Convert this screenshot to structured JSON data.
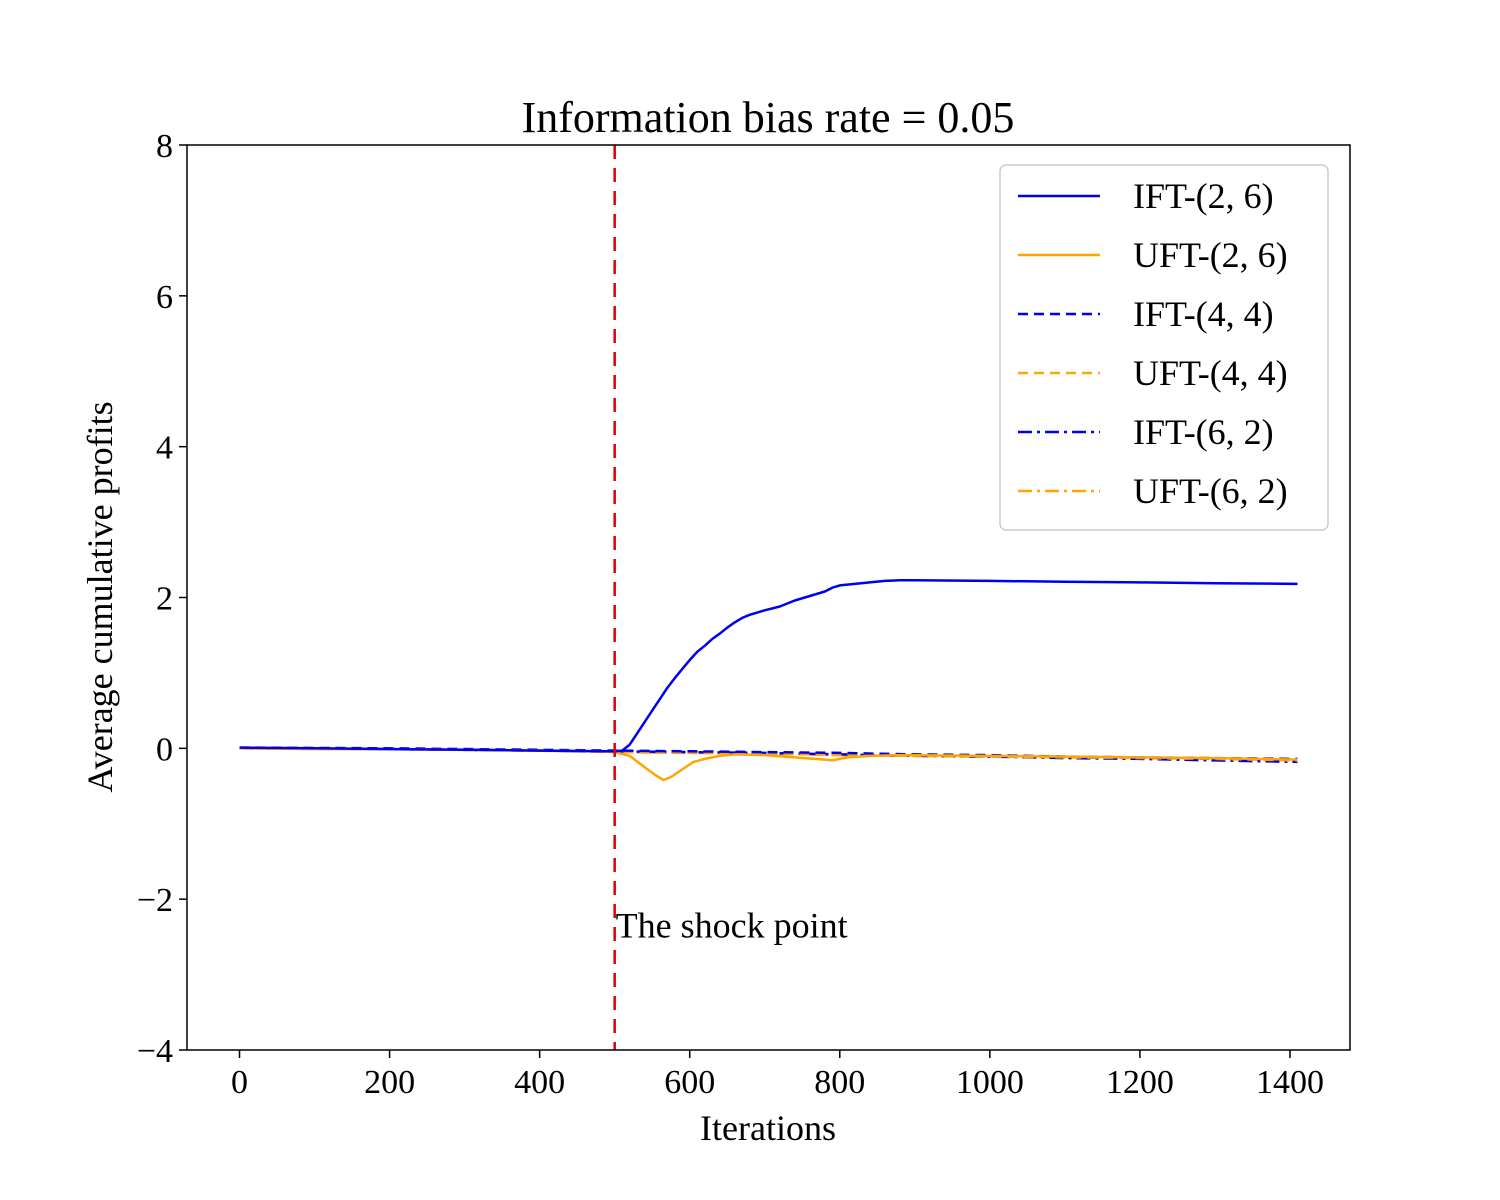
{
  "chart_data": {
    "type": "line",
    "title": "Information bias rate = 0.05",
    "xlabel": "Iterations",
    "ylabel": "Average cumulative profits",
    "xlim": [
      -70,
      1480
    ],
    "ylim": [
      -4,
      8
    ],
    "xticks": [
      0,
      200,
      400,
      600,
      800,
      1000,
      1200,
      1400
    ],
    "yticks": [
      -4,
      -2,
      0,
      2,
      4,
      6,
      8
    ],
    "xtick_labels": [
      "0",
      "200",
      "400",
      "600",
      "800",
      "1000",
      "1200",
      "1400"
    ],
    "ytick_labels": [
      "−4",
      "−2",
      "0",
      "2",
      "4",
      "6",
      "8"
    ],
    "grid": false,
    "legend_position": "top-right",
    "shock_line": {
      "x": 500,
      "color": "#e00000",
      "label": "The shock point",
      "label_y": -2.35
    },
    "series": [
      {
        "name": "IFT-(2, 6)",
        "color": "#0000ee",
        "dash": "solid",
        "points": [
          [
            0,
            0.01
          ],
          [
            100,
            0.0
          ],
          [
            200,
            -0.01
          ],
          [
            300,
            -0.02
          ],
          [
            400,
            -0.03
          ],
          [
            480,
            -0.04
          ],
          [
            500,
            -0.04
          ],
          [
            510,
            -0.03
          ],
          [
            520,
            0.05
          ],
          [
            530,
            0.2
          ],
          [
            540,
            0.35
          ],
          [
            550,
            0.5
          ],
          [
            560,
            0.65
          ],
          [
            570,
            0.8
          ],
          [
            580,
            0.93
          ],
          [
            590,
            1.05
          ],
          [
            600,
            1.17
          ],
          [
            610,
            1.28
          ],
          [
            620,
            1.36
          ],
          [
            630,
            1.45
          ],
          [
            640,
            1.52
          ],
          [
            650,
            1.6
          ],
          [
            660,
            1.67
          ],
          [
            670,
            1.73
          ],
          [
            680,
            1.77
          ],
          [
            690,
            1.8
          ],
          [
            700,
            1.83
          ],
          [
            720,
            1.88
          ],
          [
            740,
            1.96
          ],
          [
            760,
            2.02
          ],
          [
            780,
            2.08
          ],
          [
            790,
            2.13
          ],
          [
            800,
            2.16
          ],
          [
            820,
            2.18
          ],
          [
            840,
            2.2
          ],
          [
            860,
            2.22
          ],
          [
            880,
            2.23
          ],
          [
            900,
            2.23
          ],
          [
            1000,
            2.22
          ],
          [
            1100,
            2.21
          ],
          [
            1200,
            2.2
          ],
          [
            1300,
            2.19
          ],
          [
            1410,
            2.18
          ]
        ]
      },
      {
        "name": "UFT-(2, 6)",
        "color": "#ffa500",
        "dash": "solid",
        "points": [
          [
            0,
            0.0
          ],
          [
            100,
            -0.01
          ],
          [
            200,
            -0.01
          ],
          [
            300,
            -0.02
          ],
          [
            400,
            -0.03
          ],
          [
            480,
            -0.04
          ],
          [
            500,
            -0.05
          ],
          [
            520,
            -0.1
          ],
          [
            540,
            -0.25
          ],
          [
            555,
            -0.36
          ],
          [
            565,
            -0.42
          ],
          [
            575,
            -0.38
          ],
          [
            590,
            -0.28
          ],
          [
            605,
            -0.18
          ],
          [
            620,
            -0.14
          ],
          [
            640,
            -0.1
          ],
          [
            660,
            -0.08
          ],
          [
            700,
            -0.09
          ],
          [
            740,
            -0.12
          ],
          [
            780,
            -0.15
          ],
          [
            790,
            -0.16
          ],
          [
            810,
            -0.12
          ],
          [
            840,
            -0.1
          ],
          [
            880,
            -0.09
          ],
          [
            1000,
            -0.1
          ],
          [
            1100,
            -0.11
          ],
          [
            1200,
            -0.12
          ],
          [
            1300,
            -0.13
          ],
          [
            1410,
            -0.15
          ]
        ]
      },
      {
        "name": "IFT-(4, 4)",
        "color": "#0000ee",
        "dash": "dashed",
        "points": [
          [
            0,
            0.01
          ],
          [
            200,
            0.0
          ],
          [
            400,
            -0.02
          ],
          [
            500,
            -0.03
          ],
          [
            600,
            -0.04
          ],
          [
            700,
            -0.05
          ],
          [
            800,
            -0.06
          ],
          [
            900,
            -0.08
          ],
          [
            1000,
            -0.09
          ],
          [
            1100,
            -0.11
          ],
          [
            1200,
            -0.12
          ],
          [
            1300,
            -0.13
          ],
          [
            1410,
            -0.14
          ]
        ]
      },
      {
        "name": "UFT-(4, 4)",
        "color": "#ffa500",
        "dash": "dashed",
        "points": [
          [
            0,
            0.0
          ],
          [
            200,
            -0.01
          ],
          [
            400,
            -0.03
          ],
          [
            500,
            -0.05
          ],
          [
            600,
            -0.06
          ],
          [
            700,
            -0.07
          ],
          [
            800,
            -0.09
          ],
          [
            900,
            -0.1
          ],
          [
            1000,
            -0.11
          ],
          [
            1100,
            -0.12
          ],
          [
            1200,
            -0.13
          ],
          [
            1300,
            -0.14
          ],
          [
            1410,
            -0.16
          ]
        ]
      },
      {
        "name": "IFT-(6, 2)",
        "color": "#0000ee",
        "dash": "dashdot",
        "points": [
          [
            0,
            0.0
          ],
          [
            200,
            -0.01
          ],
          [
            400,
            -0.03
          ],
          [
            500,
            -0.04
          ],
          [
            600,
            -0.05
          ],
          [
            700,
            -0.06
          ],
          [
            800,
            -0.08
          ],
          [
            900,
            -0.1
          ],
          [
            1000,
            -0.11
          ],
          [
            1100,
            -0.13
          ],
          [
            1200,
            -0.14
          ],
          [
            1300,
            -0.16
          ],
          [
            1410,
            -0.18
          ]
        ]
      },
      {
        "name": "UFT-(6, 2)",
        "color": "#ffa500",
        "dash": "dashdot",
        "points": [
          [
            0,
            0.0
          ],
          [
            200,
            -0.01
          ],
          [
            400,
            -0.03
          ],
          [
            500,
            -0.05
          ],
          [
            600,
            -0.06
          ],
          [
            700,
            -0.07
          ],
          [
            800,
            -0.09
          ],
          [
            900,
            -0.1
          ],
          [
            1000,
            -0.11
          ],
          [
            1100,
            -0.12
          ],
          [
            1200,
            -0.13
          ],
          [
            1300,
            -0.15
          ],
          [
            1410,
            -0.17
          ]
        ]
      }
    ]
  }
}
